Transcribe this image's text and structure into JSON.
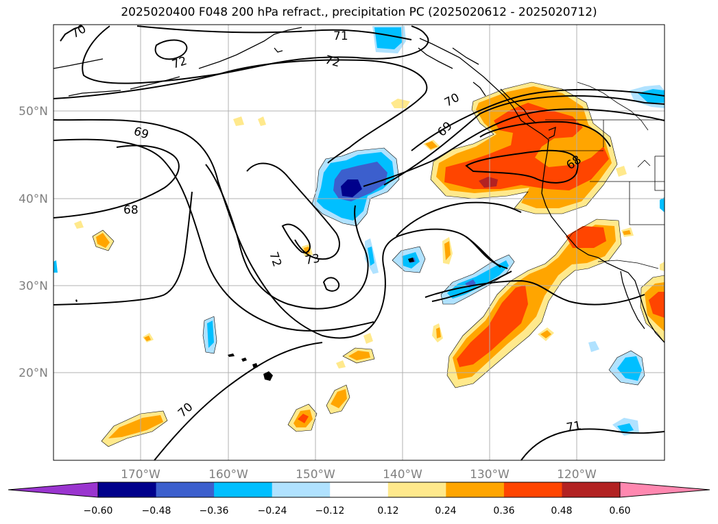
{
  "title": "2025020400 F048 200 hPa refract., precipitation PC (2025020612 - 2025020712)",
  "axes": {
    "lon_ticks": [
      "170°W",
      "160°W",
      "150°W",
      "140°W",
      "130°W",
      "120°W"
    ],
    "lat_ticks": [
      "50°N",
      "40°N",
      "30°N",
      "20°N"
    ],
    "grid": true
  },
  "contour_labels": [
    "70",
    "71",
    "72",
    "72",
    "69",
    "70",
    "69",
    "68",
    "68",
    "72",
    "73",
    "70",
    "71"
  ],
  "colorbar": {
    "tick_labels": [
      "−0.60",
      "−0.48",
      "−0.36",
      "−0.24",
      "−0.12",
      "0.12",
      "0.24",
      "0.36",
      "0.48",
      "0.60"
    ],
    "colors": [
      "#9a35cf",
      "#00008b",
      "#3c5fcd",
      "#00bfff",
      "#b0e2ff",
      "#ffffff",
      "#ffe98c",
      "#ffa500",
      "#ff4500",
      "#b22222",
      "#ff88b0"
    ],
    "extend": "both"
  }
}
